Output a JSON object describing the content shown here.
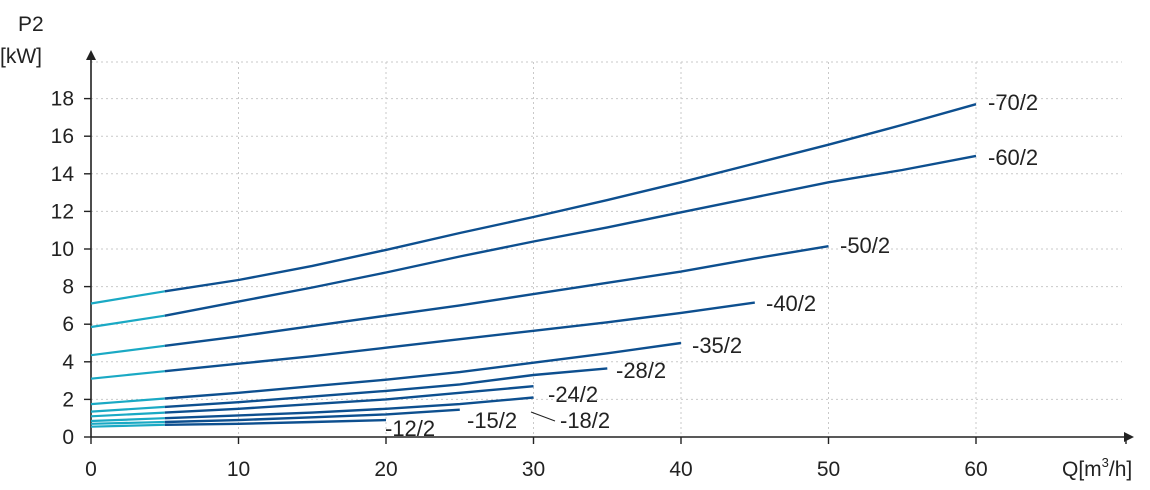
{
  "chart_data": {
    "type": "line",
    "xlabel": "Q[m³/h]",
    "xlabel_parts": {
      "pre": "Q[m",
      "sup": "3",
      "post": "/h]"
    },
    "ylabel_line1": "P2",
    "ylabel_line2": "[kW]",
    "xlim": [
      0,
      70
    ],
    "ylim": [
      0,
      20
    ],
    "xticks": [
      0,
      10,
      20,
      30,
      40,
      50,
      60
    ],
    "yticks": [
      0,
      2,
      4,
      6,
      8,
      10,
      12,
      14,
      16,
      18
    ],
    "grid": true,
    "colors": {
      "main": "#0d4f8f",
      "low_flow": "#1aa9c4",
      "axis": "#222222",
      "grid": "#c9c9c9"
    },
    "series": [
      {
        "name": "-70/2",
        "points": [
          [
            0,
            7.1
          ],
          [
            5,
            7.75
          ],
          [
            10,
            8.35
          ],
          [
            15,
            9.1
          ],
          [
            20,
            9.95
          ],
          [
            25,
            10.85
          ],
          [
            30,
            11.7
          ],
          [
            35,
            12.6
          ],
          [
            40,
            13.55
          ],
          [
            45,
            14.55
          ],
          [
            50,
            15.55
          ],
          [
            55,
            16.6
          ],
          [
            60,
            17.7
          ]
        ]
      },
      {
        "name": "-60/2",
        "points": [
          [
            0,
            5.85
          ],
          [
            5,
            6.45
          ],
          [
            10,
            7.2
          ],
          [
            15,
            7.95
          ],
          [
            20,
            8.75
          ],
          [
            25,
            9.6
          ],
          [
            30,
            10.4
          ],
          [
            35,
            11.15
          ],
          [
            40,
            11.95
          ],
          [
            45,
            12.75
          ],
          [
            50,
            13.55
          ],
          [
            55,
            14.2
          ],
          [
            60,
            14.95
          ]
        ]
      },
      {
        "name": "-50/2",
        "points": [
          [
            0,
            4.35
          ],
          [
            5,
            4.85
          ],
          [
            10,
            5.35
          ],
          [
            15,
            5.9
          ],
          [
            20,
            6.45
          ],
          [
            25,
            7.0
          ],
          [
            30,
            7.6
          ],
          [
            35,
            8.2
          ],
          [
            40,
            8.8
          ],
          [
            45,
            9.5
          ],
          [
            50,
            10.15
          ]
        ]
      },
      {
        "name": "-40/2",
        "points": [
          [
            0,
            3.1
          ],
          [
            5,
            3.5
          ],
          [
            10,
            3.9
          ],
          [
            15,
            4.3
          ],
          [
            20,
            4.75
          ],
          [
            25,
            5.2
          ],
          [
            30,
            5.65
          ],
          [
            35,
            6.1
          ],
          [
            40,
            6.6
          ],
          [
            45,
            7.15
          ]
        ]
      },
      {
        "name": "-35/2",
        "points": [
          [
            0,
            1.75
          ],
          [
            5,
            2.05
          ],
          [
            10,
            2.35
          ],
          [
            15,
            2.7
          ],
          [
            20,
            3.05
          ],
          [
            25,
            3.45
          ],
          [
            30,
            3.95
          ],
          [
            35,
            4.45
          ],
          [
            40,
            5.0
          ]
        ]
      },
      {
        "name": "-28/2",
        "points": [
          [
            0,
            1.35
          ],
          [
            5,
            1.6
          ],
          [
            10,
            1.85
          ],
          [
            15,
            2.15
          ],
          [
            20,
            2.45
          ],
          [
            25,
            2.8
          ],
          [
            30,
            3.3
          ],
          [
            35,
            3.65
          ]
        ]
      },
      {
        "name": "-24/2",
        "points": [
          [
            0,
            1.1
          ],
          [
            5,
            1.3
          ],
          [
            10,
            1.5
          ],
          [
            15,
            1.75
          ],
          [
            20,
            2.0
          ],
          [
            25,
            2.35
          ],
          [
            30,
            2.7
          ]
        ]
      },
      {
        "name": "-18/2",
        "points": [
          [
            0,
            0.85
          ],
          [
            5,
            1.0
          ],
          [
            10,
            1.15
          ],
          [
            15,
            1.3
          ],
          [
            20,
            1.5
          ],
          [
            25,
            1.75
          ],
          [
            30,
            2.1
          ]
        ]
      },
      {
        "name": "-15/2",
        "points": [
          [
            0,
            0.7
          ],
          [
            5,
            0.8
          ],
          [
            10,
            0.9
          ],
          [
            15,
            1.05
          ],
          [
            20,
            1.2
          ],
          [
            25,
            1.45
          ]
        ]
      },
      {
        "name": "-12/2",
        "points": [
          [
            0,
            0.55
          ],
          [
            5,
            0.65
          ],
          [
            10,
            0.7
          ],
          [
            15,
            0.8
          ],
          [
            20,
            0.9
          ]
        ]
      }
    ]
  }
}
